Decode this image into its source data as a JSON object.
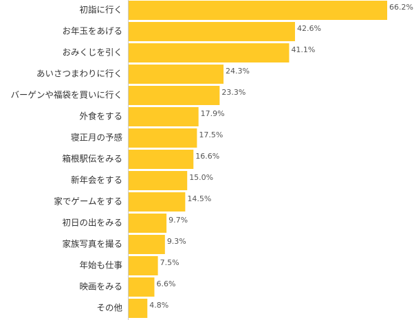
{
  "chart_data": {
    "type": "barh",
    "categories": [
      "初詣に行く",
      "お年玉をあげる",
      "おみくじを引く",
      "あいさつまわりに行く",
      "バーゲンや福袋を買いに行く",
      "外食をする",
      "寝正月の予感",
      "箱根駅伝をみる",
      "新年会をする",
      "家でゲームをする",
      "初日の出をみる",
      "家族写真を撮る",
      "年始も仕事",
      "映画をみる",
      "その他"
    ],
    "values": [
      66.2,
      42.6,
      41.1,
      24.3,
      23.3,
      17.9,
      17.5,
      16.6,
      15.0,
      14.5,
      9.7,
      9.3,
      7.5,
      6.6,
      4.8
    ],
    "value_labels": [
      "66.2%",
      "42.6%",
      "41.1%",
      "24.3%",
      "23.3%",
      "17.9%",
      "17.5%",
      "16.6%",
      "15.0%",
      "14.5%",
      "9.7%",
      "9.3%",
      "7.5%",
      "6.6%",
      "4.8%"
    ],
    "color": "#ffc926"
  }
}
